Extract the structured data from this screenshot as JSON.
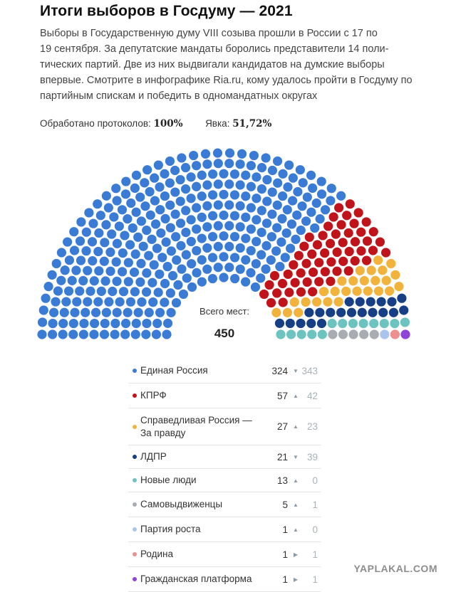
{
  "header": {
    "title": "Итоги выборов в Госдуму — 2021",
    "lead_lines": [
      "Выборы в Государственную думу VIII созыва прошли в России с 17 по",
      "19 сентября. За депутатские мандаты боролись представители 14 поли-",
      "тических партий. Две из них выдвигали кандидатов на думские выборы",
      "впервые. Смотрите в инфографике Ria.ru, кому удалось пройти в Госдуму по",
      "партийным спискам и победить в одномандатных округах"
    ]
  },
  "stats": {
    "protocols_label": "Обработано протоколов:",
    "protocols_value": "100%",
    "turnout_label": "Явка:",
    "turnout_value": "51,72%"
  },
  "total": {
    "label": "Всего мест:",
    "value": "450"
  },
  "watermark": "YAPLAKAL.COM",
  "chart_data": {
    "type": "parliament",
    "total_seats": 450,
    "parties": [
      {
        "name": "Единая Россия",
        "seats": 324,
        "previous": 343,
        "trend": "down",
        "color": "#3a7bd5"
      },
      {
        "name": "КПРФ",
        "seats": 57,
        "previous": 42,
        "trend": "up",
        "color": "#c0141a"
      },
      {
        "name": "Справедливая Россия — За правду",
        "seats": 27,
        "previous": 23,
        "trend": "up",
        "color": "#f2b33d"
      },
      {
        "name": "ЛДПР",
        "seats": 21,
        "previous": 39,
        "trend": "down",
        "color": "#173f86"
      },
      {
        "name": "Новые люди",
        "seats": 13,
        "previous": 0,
        "trend": "up",
        "color": "#6cc3c0"
      },
      {
        "name": "Самовыдвиженцы",
        "seats": 5,
        "previous": 1,
        "trend": "up",
        "color": "#a9adb3"
      },
      {
        "name": "Партия роста",
        "seats": 1,
        "previous": 0,
        "trend": "up",
        "color": "#aac4ee"
      },
      {
        "name": "Родина",
        "seats": 1,
        "previous": 1,
        "trend": "same",
        "color": "#ee8f8f"
      },
      {
        "name": "Гражданская платформа",
        "seats": 1,
        "previous": 1,
        "trend": "same",
        "color": "#8e44d9"
      }
    ]
  }
}
